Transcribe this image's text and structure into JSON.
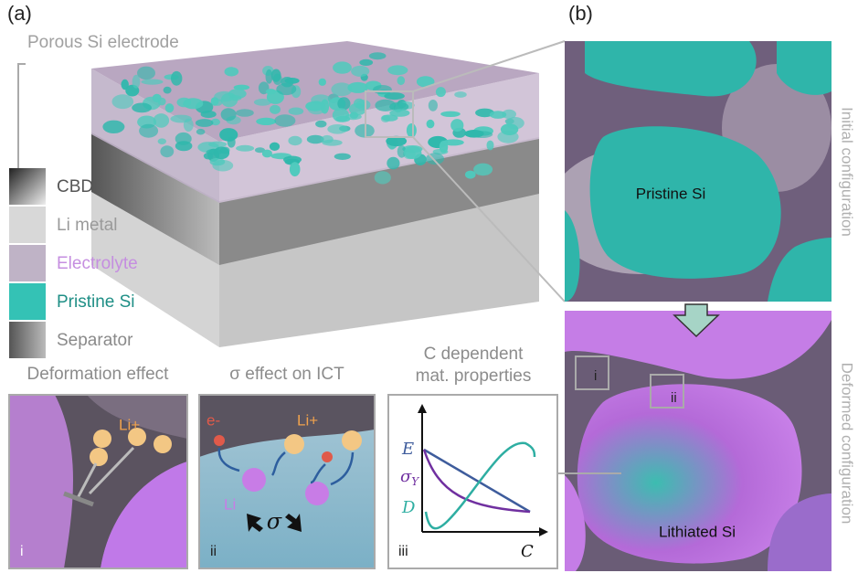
{
  "panel_a": {
    "label": "(a)",
    "electrode_label": "Porous Si electrode",
    "legend": [
      "CBD",
      "Li metal",
      "Electrolyte",
      "Pristine Si",
      "Separator"
    ]
  },
  "panel_b": {
    "label": "(b)",
    "top_label": "Pristine Si",
    "bottom_label": "Lithiated Si",
    "top_side_label": "Initial configuration",
    "bottom_side_label": "Deformed configuration",
    "box_labels": [
      "i",
      "ii"
    ]
  },
  "insets": [
    {
      "title": "Deformation effect",
      "numeral": "i",
      "ion": "Li+"
    },
    {
      "title": "σ effect on ICT",
      "numeral": "ii",
      "electron": "e-",
      "ion": "Li+",
      "atom": "Li",
      "stress": "σ"
    },
    {
      "title": [
        "C dependent",
        "mat. properties"
      ],
      "numeral": "iii",
      "curves": [
        {
          "symbol": "E"
        },
        {
          "symbol": "σ",
          "subscript": "Y"
        },
        {
          "symbol": "D"
        }
      ],
      "x_axis": "C"
    }
  ]
}
